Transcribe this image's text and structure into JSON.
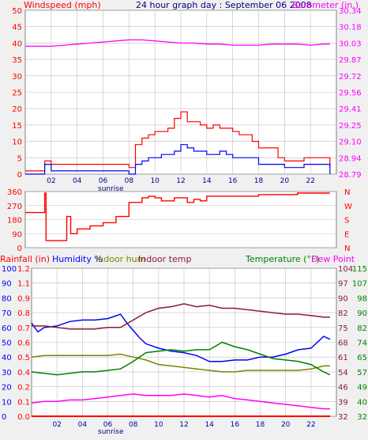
{
  "colors": {
    "background": "#f0f0f0",
    "plot_bg": "#ffffff",
    "red": "#ff0000",
    "blue": "#0000ff",
    "magenta": "#ff00ff",
    "navy": "#0000a0",
    "green": "#008000",
    "olive": "#808000",
    "maroon": "#8b1a3a",
    "pink_text": "#ff00ff",
    "grid": "#c0c0c0"
  },
  "chart_data": [
    {
      "type": "line",
      "title": "24 hour graph day : September 06 2008",
      "left_label": "Windspeed (mph)",
      "right_label": "Barometer (in.)",
      "left_ticks": [
        "50",
        "45",
        "40",
        "35",
        "30",
        "25",
        "20",
        "15",
        "10",
        "5",
        "0"
      ],
      "right_ticks": [
        "30.34",
        "30.18",
        "30.03",
        "29.87",
        "29.72",
        "29.56",
        "29.41",
        "29.25",
        "29.10",
        "28.94",
        "28.79"
      ],
      "x_ticks": [
        "02",
        "04",
        "06",
        "08",
        "10",
        "12",
        "14",
        "16",
        "18",
        "20",
        "22"
      ],
      "x_sublabel": "sunrise",
      "xlim": [
        0,
        24
      ],
      "ylim_left": [
        0,
        50
      ],
      "ylim_right": [
        28.79,
        30.34
      ],
      "grid": true,
      "series": [
        {
          "label_key": "gust",
          "color": "#ff0000",
          "x": [
            0,
            1,
            1.5,
            2,
            3,
            4,
            5,
            6,
            7,
            7.5,
            8,
            8.5,
            9,
            9.5,
            10,
            10.5,
            11,
            11.5,
            12,
            12.5,
            13,
            13.5,
            14,
            14.5,
            15,
            15.5,
            16,
            16.5,
            17,
            17.5,
            18,
            18.5,
            19,
            19.5,
            20,
            20.5,
            21,
            21.5,
            22,
            22.5,
            23,
            23.5
          ],
          "values": [
            1,
            1,
            4,
            3,
            3,
            3,
            3,
            3,
            3,
            3,
            2,
            9,
            11,
            12,
            13,
            13,
            14,
            17,
            19,
            16,
            16,
            15,
            14,
            15,
            14,
            14,
            13,
            12,
            12,
            10,
            8,
            8,
            8,
            5,
            4,
            4,
            4,
            5,
            5,
            5,
            5,
            2
          ]
        },
        {
          "label_key": "wind",
          "color": "#0000ff",
          "x": [
            0,
            1,
            1.5,
            2,
            3,
            4,
            5,
            6,
            7,
            7.5,
            8,
            8.5,
            9,
            9.5,
            10,
            10.5,
            11,
            11.5,
            12,
            12.5,
            13,
            13.5,
            14,
            14.5,
            15,
            15.5,
            16,
            16.5,
            17,
            17.5,
            18,
            18.5,
            19,
            19.5,
            20,
            20.5,
            21,
            21.5,
            22,
            22.5,
            23,
            23.5
          ],
          "values": [
            0,
            0,
            3,
            1,
            1,
            1,
            1,
            1,
            1,
            1,
            0,
            3,
            4,
            5,
            5,
            6,
            6,
            7,
            9,
            8,
            7,
            7,
            6,
            6,
            7,
            6,
            5,
            5,
            5,
            5,
            3,
            3,
            3,
            3,
            2,
            2,
            2,
            3,
            3,
            3,
            3,
            0
          ]
        },
        {
          "label_key": "barometer",
          "color": "#ff00ff",
          "x": [
            0,
            1,
            2,
            3,
            4,
            5,
            6,
            7,
            8,
            9,
            10,
            11,
            12,
            13,
            14,
            15,
            16,
            17,
            18,
            19,
            20,
            21,
            22,
            23,
            23.5
          ],
          "values": [
            30.0,
            30.0,
            30.0,
            30.01,
            30.02,
            30.03,
            30.04,
            30.05,
            30.06,
            30.06,
            30.05,
            30.04,
            30.03,
            30.03,
            30.02,
            30.02,
            30.01,
            30.01,
            30.01,
            30.02,
            30.02,
            30.02,
            30.01,
            30.02,
            30.02
          ]
        }
      ]
    },
    {
      "type": "line",
      "left_ticks": [
        "360",
        "270",
        "180",
        "90",
        "0"
      ],
      "right_ticks": [
        "N",
        "W",
        "S",
        "E",
        "N"
      ],
      "xlim": [
        0,
        24
      ],
      "ylim": [
        0,
        360
      ],
      "grid": true,
      "series": [
        {
          "label_key": "direction",
          "color": "#ff0000",
          "x": [
            0,
            1,
            1.5,
            1.6,
            2,
            2.5,
            3,
            3.2,
            3.5,
            4,
            5,
            6,
            7,
            7.5,
            8,
            8.5,
            9,
            9.5,
            10,
            10.5,
            11,
            11.5,
            12,
            12.5,
            13,
            13.5,
            14,
            15,
            16,
            17,
            18,
            19,
            20,
            21,
            22,
            23,
            23.5
          ],
          "values": [
            225,
            225,
            350,
            45,
            45,
            45,
            45,
            200,
            90,
            120,
            140,
            160,
            200,
            200,
            290,
            290,
            320,
            330,
            320,
            300,
            300,
            320,
            320,
            290,
            310,
            300,
            330,
            330,
            330,
            330,
            340,
            340,
            340,
            350,
            350,
            350,
            350
          ]
        }
      ]
    },
    {
      "type": "line",
      "labels": {
        "rainfall": "Rainfall (in)",
        "humidity": "Humidity %",
        "indoor_hum": "Indoor hum",
        "indoor_temp": "Indoor temp",
        "temperature": "Temperature (°F)",
        "dew_point": "Dew Point"
      },
      "x_ticks": [
        "02",
        "04",
        "06",
        "08",
        "10",
        "12",
        "14",
        "16",
        "18",
        "20",
        "22"
      ],
      "x_sublabel": "sunrise",
      "xlim": [
        0,
        24
      ],
      "humidity_ticks": [
        "100",
        "90",
        "80",
        "70",
        "60",
        "50",
        "40",
        "30",
        "20",
        "10",
        "0"
      ],
      "rain_ticks": [
        "1.2",
        "1.1",
        "0.9",
        "0.8",
        "0.7",
        "0.6",
        "0.5",
        "0.4",
        "0.2",
        "0.1",
        "0.0"
      ],
      "temp_ticks_a": [
        "104",
        "97",
        "90",
        "82",
        "75",
        "68",
        "61",
        "54",
        "46",
        "39",
        "32"
      ],
      "temp_ticks_b": [
        "115",
        "107",
        "98",
        "90",
        "82",
        "74",
        "65",
        "57",
        "49",
        "40",
        "32"
      ],
      "ylim_humidity": [
        0,
        100
      ],
      "grid": true,
      "series": [
        {
          "label_key": "humidity",
          "color": "#0000ff",
          "x": [
            0,
            0.5,
            1,
            2,
            3,
            4,
            5,
            6,
            7,
            7.5,
            8,
            8.5,
            9,
            10,
            11,
            12,
            13,
            14,
            15,
            16,
            17,
            18,
            19,
            20,
            21,
            22,
            23,
            23.5
          ],
          "values": [
            63,
            57,
            60,
            61,
            64,
            65,
            65,
            66,
            69,
            63,
            58,
            53,
            49,
            46,
            44,
            43,
            41,
            37,
            37,
            38,
            38,
            40,
            40,
            42,
            45,
            46,
            54,
            52
          ]
        },
        {
          "label_key": "indoor_hum",
          "color": "#808000",
          "x": [
            0,
            1,
            2,
            3,
            4,
            5,
            6,
            7,
            8,
            9,
            10,
            11,
            12,
            13,
            14,
            15,
            16,
            17,
            18,
            19,
            20,
            21,
            22,
            23,
            23.5
          ],
          "values": [
            40,
            41,
            41,
            41,
            41,
            41,
            41,
            42,
            40,
            38,
            35,
            34,
            33,
            32,
            31,
            30,
            30,
            31,
            31,
            31,
            31,
            31,
            32,
            34,
            34
          ]
        },
        {
          "label_key": "indoor_temp",
          "color": "#8b1a3a",
          "x": [
            0,
            1,
            2,
            3,
            4,
            5,
            6,
            7,
            8,
            9,
            10,
            11,
            12,
            13,
            14,
            15,
            16,
            17,
            18,
            19,
            20,
            21,
            22,
            23,
            23.5
          ],
          "values": [
            61,
            61,
            60,
            59,
            59,
            59,
            60,
            60,
            65,
            70,
            73,
            74,
            76,
            74,
            75,
            73,
            73,
            72,
            71,
            70,
            69,
            69,
            68,
            67,
            67
          ]
        },
        {
          "label_key": "temperature",
          "color": "#008000",
          "x": [
            0,
            1,
            2,
            3,
            4,
            5,
            6,
            7,
            8,
            9,
            10,
            11,
            12,
            13,
            14,
            15,
            16,
            17,
            18,
            19,
            20,
            21,
            22,
            23,
            23.5
          ],
          "values": [
            30,
            29,
            28,
            29,
            30,
            30,
            31,
            32,
            37,
            43,
            44,
            45,
            44,
            45,
            45,
            50,
            47,
            45,
            42,
            39,
            38,
            37,
            35,
            30,
            28
          ]
        },
        {
          "label_key": "dew_point",
          "color": "#ff00ff",
          "x": [
            0,
            1,
            2,
            3,
            4,
            5,
            6,
            7,
            8,
            9,
            10,
            11,
            12,
            13,
            14,
            15,
            16,
            17,
            18,
            19,
            20,
            21,
            22,
            23,
            23.5
          ],
          "values": [
            9,
            10,
            10,
            11,
            11,
            12,
            13,
            14,
            15,
            14,
            14,
            14,
            15,
            14,
            13,
            14,
            12,
            11,
            10,
            9,
            8,
            7,
            6,
            5,
            5
          ]
        },
        {
          "label_key": "rainfall",
          "color": "#ff0000",
          "x": [
            0,
            23.5
          ],
          "values": [
            0,
            0
          ]
        }
      ]
    }
  ]
}
